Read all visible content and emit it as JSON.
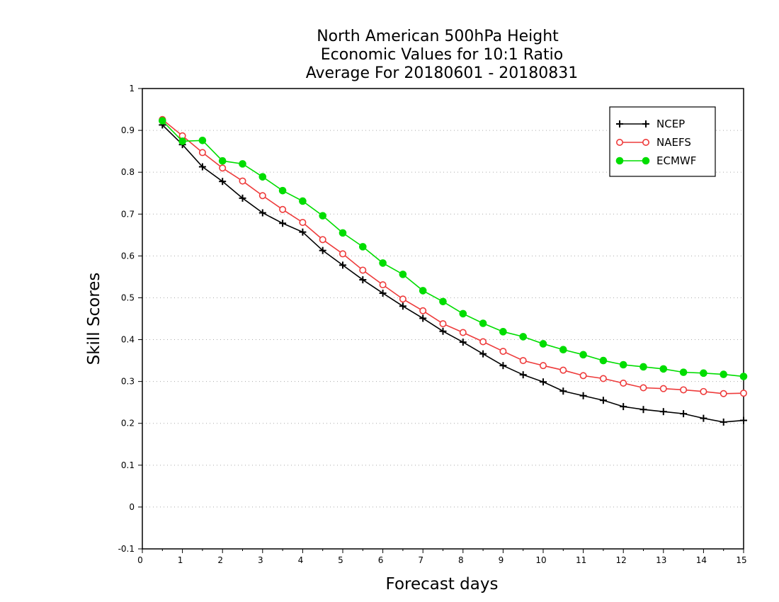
{
  "chart_data": {
    "type": "line",
    "title_lines": [
      "North American 500hPa Height",
      "Economic Values for 10:1 Ratio",
      "Average For 20180601 - 20180831"
    ],
    "xlabel": "Forecast days",
    "ylabel": "Skill Scores",
    "xlim": [
      0,
      15
    ],
    "ylim": [
      -0.1,
      1
    ],
    "x_ticks": [
      "0",
      "1",
      "2",
      "3",
      "4",
      "5",
      "6",
      "7",
      "8",
      "9",
      "10",
      "11",
      "12",
      "13",
      "14",
      "15"
    ],
    "y_ticks": [
      "-0.1",
      "0",
      "0.1",
      "0.2",
      "0.3",
      "0.4",
      "0.5",
      "0.6",
      "0.7",
      "0.8",
      "0.9",
      "1"
    ],
    "grid": "horizontal dotted",
    "legend_position": "top-right",
    "x": [
      0.5,
      1,
      1.5,
      2,
      2.5,
      3,
      3.5,
      4,
      4.5,
      5,
      5.5,
      6,
      6.5,
      7,
      7.5,
      8,
      8.5,
      9,
      9.5,
      10,
      10.5,
      11,
      11.5,
      12,
      12.5,
      13,
      13.5,
      14,
      14.5,
      15
    ],
    "series": [
      {
        "name": "NCEP",
        "color": "#000000",
        "marker": "plus",
        "values": [
          0.913,
          0.866,
          0.813,
          0.778,
          0.738,
          0.703,
          0.678,
          0.657,
          0.613,
          0.578,
          0.543,
          0.511,
          0.48,
          0.451,
          0.42,
          0.394,
          0.366,
          0.338,
          0.316,
          0.299,
          0.277,
          0.266,
          0.255,
          0.24,
          0.233,
          0.228,
          0.223,
          0.212,
          0.203,
          0.207
        ]
      },
      {
        "name": "NAEFS",
        "color": "#ee3b3b",
        "marker": "open-circle",
        "values": [
          0.926,
          0.887,
          0.847,
          0.81,
          0.779,
          0.744,
          0.711,
          0.68,
          0.639,
          0.605,
          0.566,
          0.531,
          0.497,
          0.469,
          0.438,
          0.417,
          0.395,
          0.372,
          0.35,
          0.338,
          0.327,
          0.314,
          0.307,
          0.296,
          0.285,
          0.283,
          0.28,
          0.276,
          0.271,
          0.272
        ]
      },
      {
        "name": "ECMWF",
        "color": "#00dd00",
        "marker": "filled-circle",
        "values": [
          0.923,
          0.874,
          0.876,
          0.827,
          0.82,
          0.789,
          0.756,
          0.731,
          0.696,
          0.655,
          0.622,
          0.583,
          0.556,
          0.517,
          0.491,
          0.462,
          0.439,
          0.419,
          0.407,
          0.39,
          0.376,
          0.364,
          0.35,
          0.34,
          0.335,
          0.33,
          0.322,
          0.32,
          0.317,
          0.312
        ]
      }
    ]
  }
}
